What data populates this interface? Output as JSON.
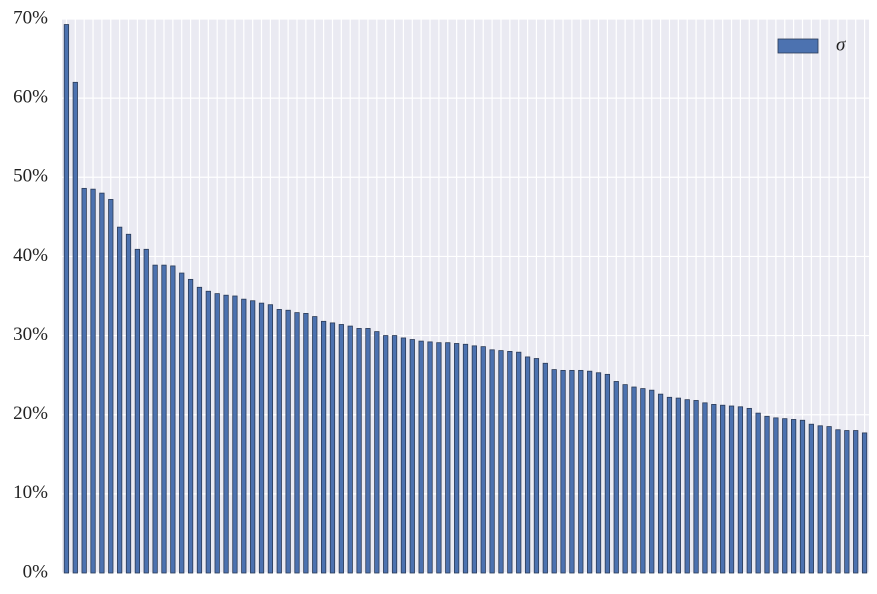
{
  "chart_data": {
    "type": "bar",
    "categories": [
      null,
      null,
      null,
      null,
      null,
      null,
      null,
      null,
      null,
      null,
      null,
      null,
      null,
      null,
      null,
      null,
      null,
      null,
      null,
      null,
      null,
      null,
      null,
      null,
      null,
      null,
      null,
      null,
      null,
      null,
      null,
      null,
      null,
      null,
      null,
      null,
      null,
      null,
      null,
      null,
      null,
      null,
      null,
      null,
      null,
      null,
      null,
      null,
      null,
      null,
      null,
      null,
      null,
      null,
      null,
      null,
      null,
      null,
      null,
      null,
      null,
      null,
      null,
      null,
      null,
      null,
      null,
      null,
      null,
      null,
      null,
      null,
      null,
      null,
      null,
      null,
      null,
      null,
      null,
      null,
      null,
      null,
      null,
      null,
      null,
      null,
      null,
      null,
      null,
      null,
      null
    ],
    "series": [
      {
        "name": "σ",
        "color": "#4c72b0",
        "values": [
          69.3,
          62.0,
          48.6,
          48.5,
          48.0,
          47.2,
          43.7,
          42.8,
          40.9,
          40.9,
          38.9,
          38.9,
          38.8,
          37.9,
          37.1,
          36.1,
          35.6,
          35.3,
          35.1,
          35.0,
          34.6,
          34.4,
          34.1,
          33.9,
          33.3,
          33.2,
          32.9,
          32.8,
          32.4,
          31.8,
          31.6,
          31.4,
          31.2,
          30.9,
          30.9,
          30.5,
          30.0,
          30.0,
          29.7,
          29.5,
          29.3,
          29.2,
          29.1,
          29.1,
          29.0,
          28.9,
          28.7,
          28.6,
          28.2,
          28.1,
          28.0,
          27.9,
          27.3,
          27.1,
          26.5,
          25.7,
          25.6,
          25.6,
          25.6,
          25.5,
          25.3,
          25.1,
          24.2,
          23.8,
          23.5,
          23.3,
          23.1,
          22.6,
          22.2,
          22.1,
          21.9,
          21.8,
          21.5,
          21.3,
          21.2,
          21.1,
          21.0,
          20.8,
          20.2,
          19.8,
          19.6,
          19.5,
          19.4,
          19.3,
          18.8,
          18.6,
          18.5,
          18.1,
          18.0,
          18.0,
          17.7
        ]
      }
    ],
    "ylim": [
      0,
      70
    ],
    "yticks": [
      {
        "value": 0,
        "label": "0%"
      },
      {
        "value": 10,
        "label": "10%"
      },
      {
        "value": 20,
        "label": "20%"
      },
      {
        "value": 30,
        "label": "30%"
      },
      {
        "value": 40,
        "label": "40%"
      },
      {
        "value": 50,
        "label": "50%"
      },
      {
        "value": 60,
        "label": "60%"
      },
      {
        "value": 70,
        "label": "70%"
      }
    ],
    "grid": true,
    "legend": "upper right"
  }
}
